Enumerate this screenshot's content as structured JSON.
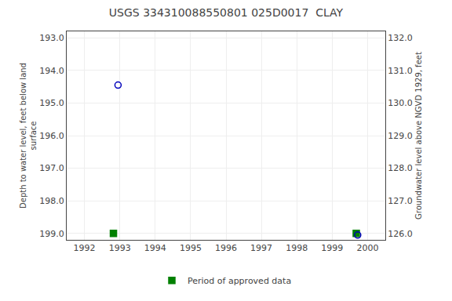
{
  "chart_data": {
    "type": "scatter",
    "title": "USGS 334310088550801 025D0017  CLAY",
    "ylabel": "Depth to water level, feet below land\nsurface",
    "y2label": "Groundwater level above NGVD 1929, feet",
    "xlim": [
      1991.5,
      2000.5
    ],
    "xticks": [
      1992,
      1993,
      1994,
      1995,
      1996,
      1997,
      1998,
      1999,
      2000
    ],
    "ylim": [
      199.2,
      192.8
    ],
    "yticks": [
      {
        "value": 193.0,
        "label": "193.0"
      },
      {
        "value": 194.0,
        "label": "194.0"
      },
      {
        "value": 195.0,
        "label": "195.0"
      },
      {
        "value": 196.0,
        "label": "196.0"
      },
      {
        "value": 197.0,
        "label": "197.0"
      },
      {
        "value": 198.0,
        "label": "198.0"
      },
      {
        "value": 199.0,
        "label": "199.0"
      }
    ],
    "y2lim": [
      125.8,
      132.2
    ],
    "y2ticks": [
      {
        "value": 132.0,
        "label": "132.0"
      },
      {
        "value": 131.0,
        "label": "131.0"
      },
      {
        "value": 130.0,
        "label": "130.0"
      },
      {
        "value": 129.0,
        "label": "129.0"
      },
      {
        "value": 128.0,
        "label": "128.0"
      },
      {
        "value": 127.0,
        "label": "127.0"
      },
      {
        "value": 126.0,
        "label": "126.0"
      }
    ],
    "series": [
      {
        "name": "Period of approved data",
        "color": "#008000",
        "marker": "square",
        "x": [
          1992.82,
          1999.68
        ],
        "values": [
          199.0,
          199.0
        ]
      },
      {
        "color": "#0000bb",
        "marker": "circle-open",
        "x": [
          1992.95,
          1999.72
        ],
        "values": [
          194.45,
          199.05
        ]
      }
    ],
    "grid": true,
    "legend": "bottom"
  }
}
